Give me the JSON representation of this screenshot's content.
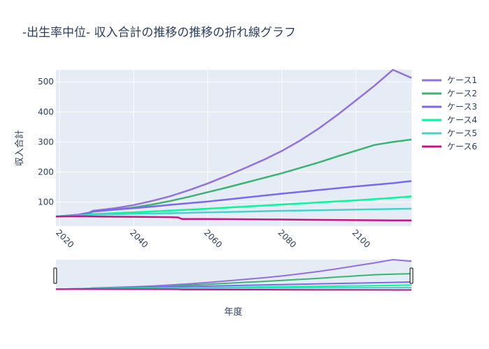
{
  "title": "-出生率中位- 収入合計の推移の推移の折れ線グラフ",
  "chart_data": {
    "type": "line",
    "title": "-出生率中位- 収入合計の推移の推移の折れ線グラフ",
    "xlabel": "年度",
    "ylabel": "収入合計",
    "xlim": [
      2019,
      2115
    ],
    "ylim": [
      20,
      540
    ],
    "x_ticks": [
      2020,
      2040,
      2060,
      2080,
      2100
    ],
    "y_ticks": [
      100,
      200,
      300,
      400,
      500
    ],
    "grid": true,
    "legend_position": "right",
    "has_range_slider": true,
    "series": [
      {
        "name": "ケース1",
        "color": "#9370DB",
        "x": [
          2019,
          2025,
          2028,
          2029,
          2035,
          2040,
          2045,
          2050,
          2055,
          2060,
          2065,
          2070,
          2075,
          2080,
          2085,
          2090,
          2095,
          2100,
          2105,
          2110,
          2115
        ],
        "y": [
          52,
          58,
          65,
          71,
          80,
          90,
          104,
          120,
          140,
          162,
          187,
          213,
          240,
          270,
          305,
          345,
          390,
          438,
          487,
          540,
          513
        ]
      },
      {
        "name": "ケース2",
        "color": "#3CB371",
        "x": [
          2019,
          2025,
          2028,
          2029,
          2035,
          2040,
          2045,
          2050,
          2055,
          2060,
          2065,
          2070,
          2075,
          2080,
          2085,
          2090,
          2095,
          2100,
          2105,
          2110,
          2115
        ],
        "y": [
          52,
          57,
          63,
          68,
          75,
          82,
          92,
          104,
          118,
          133,
          148,
          164,
          180,
          196,
          214,
          232,
          252,
          271,
          290,
          300,
          308
        ]
      },
      {
        "name": "ケース3",
        "color": "#7B68EE",
        "x": [
          2019,
          2025,
          2028,
          2029,
          2035,
          2040,
          2045,
          2050,
          2060,
          2070,
          2080,
          2090,
          2100,
          2110,
          2115
        ],
        "y": [
          52,
          58,
          64,
          69,
          75,
          80,
          85,
          91,
          102,
          115,
          128,
          140,
          152,
          163,
          170
        ]
      },
      {
        "name": "ケース4",
        "color": "#00FA9A",
        "x": [
          2019,
          2025,
          2029,
          2040,
          2050,
          2060,
          2070,
          2080,
          2090,
          2100,
          2110,
          2115
        ],
        "y": [
          52,
          56,
          60,
          66,
          72,
          78,
          85,
          92,
          99,
          106,
          114,
          119
        ]
      },
      {
        "name": "ケース5",
        "color": "#48D1CC",
        "x": [
          2019,
          2025,
          2029,
          2040,
          2050,
          2060,
          2070,
          2080,
          2090,
          2100,
          2110,
          2115
        ],
        "y": [
          52,
          55,
          58,
          61,
          63,
          66,
          68,
          71,
          73,
          75,
          77,
          78
        ]
      },
      {
        "name": "ケース6",
        "color": "#C71585",
        "x": [
          2019,
          2025,
          2030,
          2040,
          2050,
          2052,
          2053,
          2060,
          2070,
          2080,
          2090,
          2100,
          2110,
          2115
        ],
        "y": [
          52,
          53,
          52,
          51,
          50,
          49,
          44,
          44,
          43,
          42,
          41,
          40,
          39,
          39
        ]
      }
    ]
  }
}
